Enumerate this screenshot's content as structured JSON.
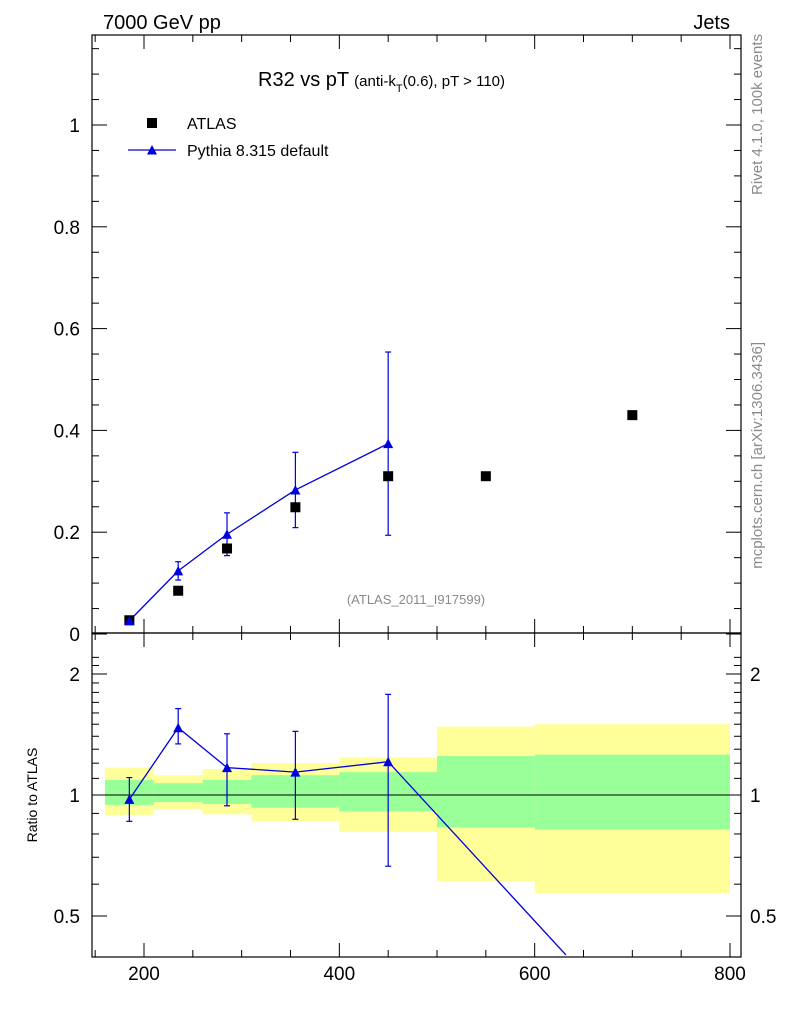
{
  "header": {
    "left": "7000 GeV pp",
    "right": "Jets"
  },
  "side_text": {
    "rivet": "Rivet 4.1.0,  100k events",
    "mcplots": "mcplots.cern.ch [arXiv:1306.3436]"
  },
  "chart_data": [
    {
      "type": "scatter",
      "title": "R32 vs pT",
      "subtitle_pre": "(anti-k",
      "subtitle_sub": "T",
      "subtitle_post": "(0.6), pT > 110)",
      "analysis_tag": "(ATLAS_2011_I917599)",
      "xlabel": "",
      "ylabel": "",
      "xlim": [
        150,
        805
      ],
      "ylim": [
        0,
        1.18
      ],
      "y_ticks": [
        "0",
        "0.2",
        "0.4",
        "0.6",
        "0.8",
        "1"
      ],
      "legend_position": "top-left",
      "series": [
        {
          "name": "ATLAS",
          "style": "markers",
          "marker": "square",
          "color": "#000000",
          "x": [
            185,
            235,
            285,
            355,
            450,
            550,
            700
          ],
          "y": [
            0.027,
            0.085,
            0.168,
            0.249,
            0.31,
            0.31,
            0.43
          ]
        },
        {
          "name": "Pythia 8.315 default",
          "style": "line+markers",
          "marker": "triangle",
          "color": "#0000dd",
          "x": [
            185,
            235,
            285,
            355,
            450
          ],
          "y": [
            0.026,
            0.124,
            0.196,
            0.283,
            0.374
          ],
          "yerr": [
            0.004,
            0.018,
            0.042,
            0.074,
            0.18
          ]
        }
      ]
    },
    {
      "type": "line",
      "ylabel": "Ratio to ATLAS",
      "xlim": [
        150,
        805
      ],
      "ylim": [
        0.4,
        2.3
      ],
      "y_scale": "log",
      "y_ticks": [
        "0.5",
        "1",
        "2"
      ],
      "x_ticks": [
        "200",
        "400",
        "600",
        "800"
      ],
      "reference": 1.0,
      "bands": [
        {
          "x0": 160,
          "x1": 210,
          "green": [
            0.945,
            1.09
          ],
          "yellow": [
            0.89,
            1.17
          ]
        },
        {
          "x0": 210,
          "x1": 260,
          "green": [
            0.96,
            1.07
          ],
          "yellow": [
            0.92,
            1.12
          ]
        },
        {
          "x0": 260,
          "x1": 310,
          "green": [
            0.95,
            1.09
          ],
          "yellow": [
            0.895,
            1.16
          ]
        },
        {
          "x0": 310,
          "x1": 400,
          "green": [
            0.93,
            1.12
          ],
          "yellow": [
            0.86,
            1.2
          ]
        },
        {
          "x0": 400,
          "x1": 500,
          "green": [
            0.91,
            1.14
          ],
          "yellow": [
            0.81,
            1.24
          ]
        },
        {
          "x0": 500,
          "x1": 600,
          "green": [
            0.83,
            1.25
          ],
          "yellow": [
            0.61,
            1.48
          ]
        },
        {
          "x0": 600,
          "x1": 800,
          "green": [
            0.82,
            1.26
          ],
          "yellow": [
            0.57,
            1.5
          ]
        }
      ],
      "series": [
        {
          "name": "Pythia 8.315 default",
          "color": "#0000dd",
          "x": [
            185,
            235,
            285,
            355,
            450
          ],
          "y": [
            0.975,
            1.47,
            1.17,
            1.14,
            1.21
          ],
          "err_lo": [
            0.115,
            0.13,
            0.23,
            0.27,
            0.545
          ],
          "err_hi": [
            0.13,
            0.17,
            0.25,
            0.3,
            0.57
          ],
          "tail_to": {
            "x": 632,
            "y": 0.4
          }
        }
      ]
    }
  ]
}
